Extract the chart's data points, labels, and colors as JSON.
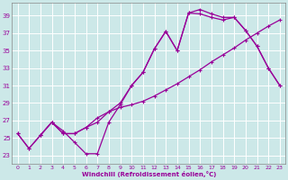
{
  "xlabel": "Windchill (Refroidissement éolien,°C)",
  "bg_color": "#cce8e8",
  "grid_color": "#ffffff",
  "line_color": "#990099",
  "xlim": [
    -0.5,
    23.5
  ],
  "ylim": [
    22.0,
    40.5
  ],
  "xticks": [
    0,
    1,
    2,
    3,
    4,
    5,
    6,
    7,
    8,
    9,
    10,
    11,
    12,
    13,
    14,
    15,
    16,
    17,
    18,
    19,
    20,
    21,
    22,
    23
  ],
  "yticks": [
    23,
    25,
    27,
    29,
    31,
    33,
    35,
    37,
    39
  ],
  "line1_x": [
    0,
    1,
    2,
    3,
    4,
    5,
    6,
    7,
    8,
    9,
    10,
    11,
    12,
    13,
    14,
    15,
    16,
    17,
    18,
    19,
    20,
    21,
    22,
    23
  ],
  "line1_y": [
    25.5,
    23.8,
    25.3,
    26.8,
    25.8,
    24.5,
    23.2,
    23.2,
    26.8,
    28.8,
    31.0,
    32.5,
    35.2,
    37.2,
    35.0,
    39.3,
    39.7,
    39.2,
    38.8,
    38.8,
    37.3,
    35.5,
    33.0,
    31.0
  ],
  "line2_x": [
    0,
    1,
    2,
    3,
    4,
    5,
    6,
    7,
    8,
    9,
    10,
    11,
    12,
    13,
    14,
    15,
    16,
    17,
    18,
    19,
    20,
    21,
    22,
    23
  ],
  "line2_y": [
    25.5,
    23.8,
    25.3,
    26.8,
    25.5,
    25.5,
    26.2,
    27.3,
    28.0,
    28.5,
    28.8,
    29.2,
    29.8,
    30.5,
    31.2,
    32.0,
    32.8,
    33.7,
    34.5,
    35.3,
    36.2,
    37.0,
    37.8,
    38.5
  ],
  "line3_x": [
    2,
    3,
    4,
    5,
    6,
    7,
    8,
    9,
    10,
    11,
    12,
    13,
    14,
    15,
    16,
    17,
    18,
    19,
    20,
    21,
    22,
    23
  ],
  "line3_y": [
    25.3,
    26.8,
    25.5,
    25.5,
    26.2,
    26.8,
    28.0,
    29.0,
    31.0,
    32.5,
    35.2,
    37.2,
    35.0,
    39.3,
    39.2,
    38.8,
    38.5,
    38.8,
    37.3,
    35.5,
    33.0,
    31.0
  ],
  "marker": "+",
  "marker_size": 3,
  "linewidth": 0.9
}
